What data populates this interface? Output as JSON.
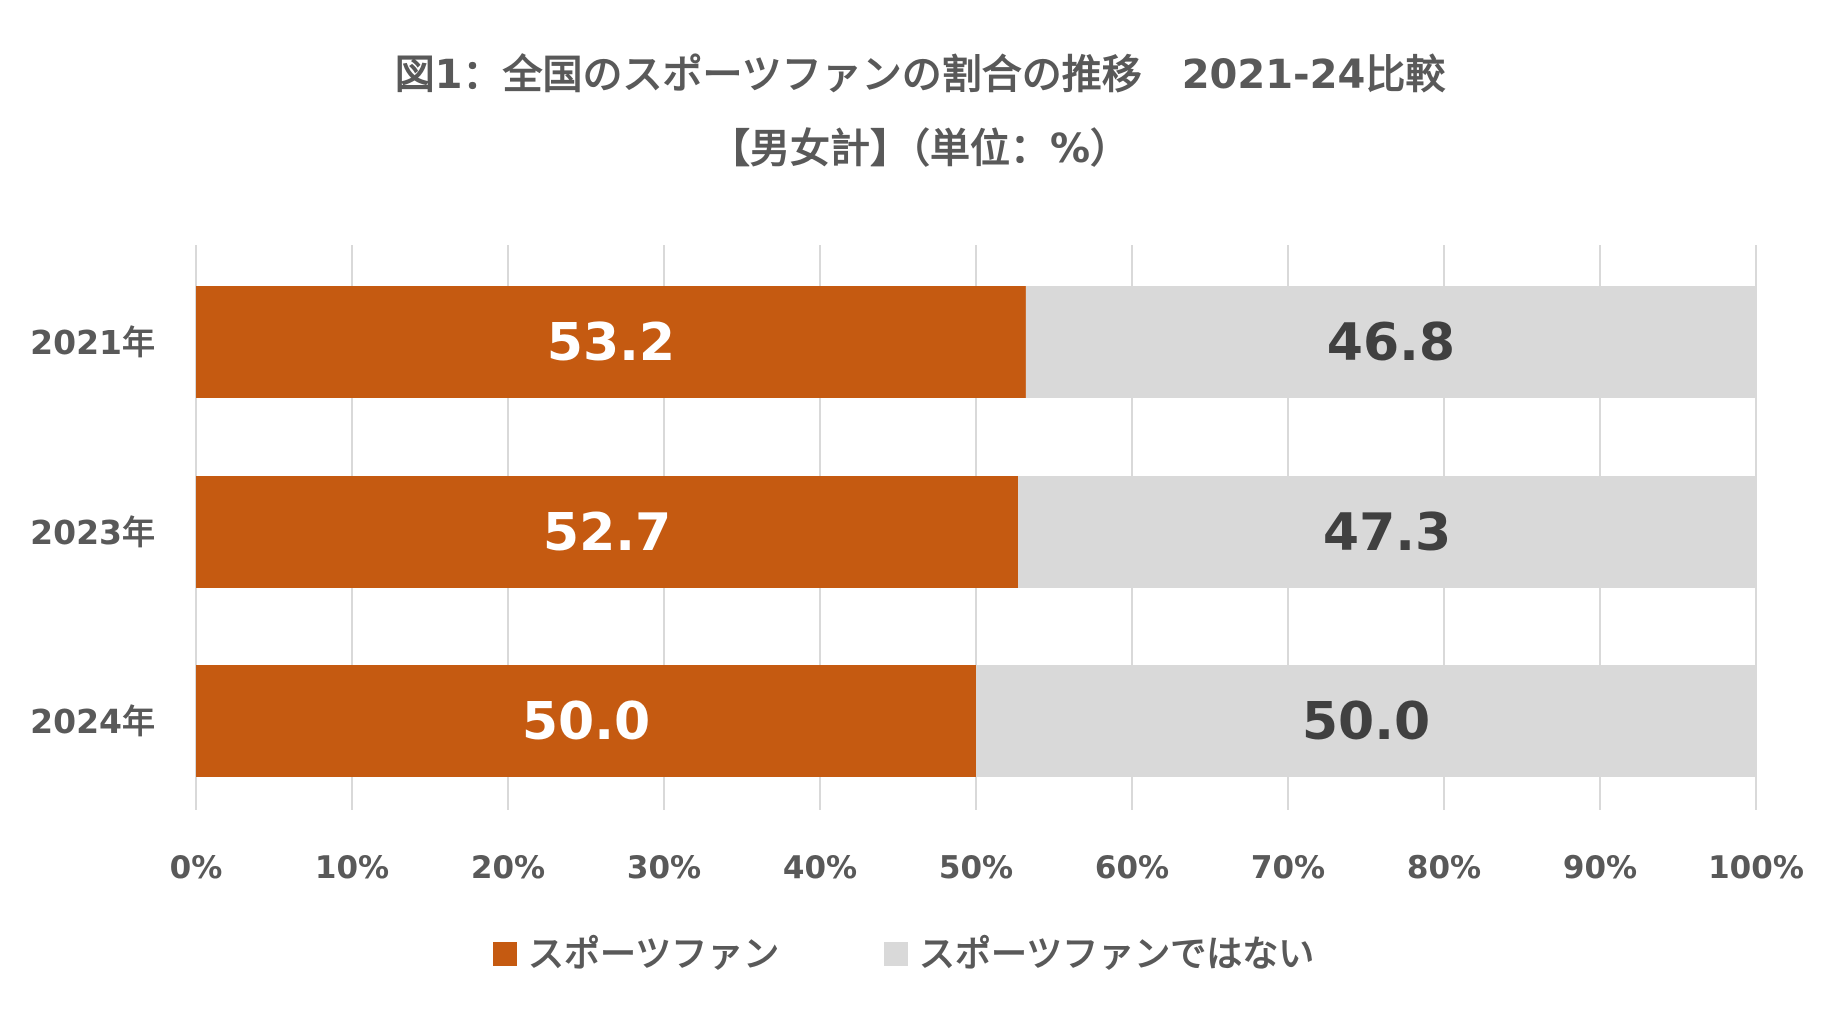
{
  "chart_data": {
    "type": "bar",
    "orientation": "horizontal",
    "stacked": true,
    "title_lines": [
      "図1：全国のスポーツファンの割合の推移　2021-24比較",
      "【男女計】（単位：%）"
    ],
    "categories": [
      "2021年",
      "2023年",
      "2024年"
    ],
    "series": [
      {
        "name": "スポーツファン",
        "color": "#c55a11",
        "label_color": "#ffffff",
        "values": [
          53.2,
          52.7,
          50.0
        ],
        "labels": [
          "53.2",
          "52.7",
          "50.0"
        ]
      },
      {
        "name": "スポーツファンではない",
        "color": "#d9d9d9",
        "label_color": "#404040",
        "values": [
          46.8,
          47.3,
          50.0
        ],
        "labels": [
          "46.8",
          "47.3",
          "50.0"
        ]
      }
    ],
    "xlim": [
      0,
      100
    ],
    "xticks": [
      0,
      10,
      20,
      30,
      40,
      50,
      60,
      70,
      80,
      90,
      100
    ],
    "xtick_labels": [
      "0%",
      "10%",
      "20%",
      "30%",
      "40%",
      "50%",
      "60%",
      "70%",
      "80%",
      "90%",
      "100%"
    ],
    "grid": true,
    "legend_position": "bottom",
    "gridline_color": "#d9d9d9"
  }
}
